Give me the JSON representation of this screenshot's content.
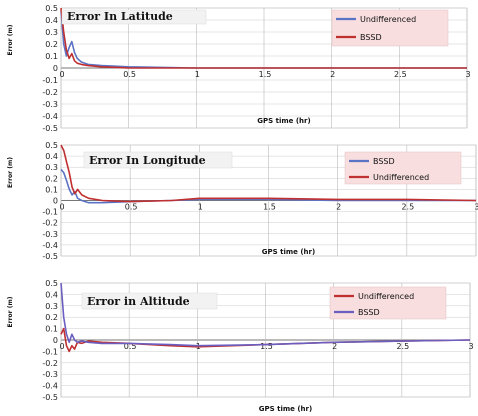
{
  "chart_data": [
    {
      "type": "line",
      "title": "Error In Latitude",
      "xlabel": "GPS time (hr)",
      "ylabel": "Error (m)",
      "xlim": [
        0,
        3
      ],
      "ylim": [
        -0.5,
        0.5
      ],
      "xticks": [
        "0",
        "0.5",
        "1",
        "1.5",
        "2",
        "2.5",
        "3"
      ],
      "yticks": [
        "0.5",
        "0.4",
        "0.3",
        "0.2",
        "0.1",
        "0",
        "-0.1",
        "-0.2",
        "-0.3",
        "-0.4",
        "-0.5"
      ],
      "grid": true,
      "legend_position": "top-right",
      "series": [
        {
          "name": "Undifferenced",
          "color": "#5b73c4",
          "x": [
            0,
            0.02,
            0.04,
            0.06,
            0.08,
            0.1,
            0.12,
            0.15,
            0.2,
            0.3,
            0.5,
            1.0,
            2.0,
            3.0
          ],
          "y": [
            0.48,
            0.2,
            0.1,
            0.17,
            0.22,
            0.13,
            0.08,
            0.05,
            0.03,
            0.02,
            0.01,
            0.0,
            0.0,
            0.0
          ]
        },
        {
          "name": "BSSD",
          "color": "#c03030",
          "x": [
            0,
            0.02,
            0.04,
            0.06,
            0.08,
            0.1,
            0.12,
            0.15,
            0.2,
            0.3,
            0.5,
            1.0,
            2.0,
            3.0
          ],
          "y": [
            0.5,
            0.3,
            0.15,
            0.08,
            0.12,
            0.06,
            0.04,
            0.03,
            0.02,
            0.01,
            0.0,
            0.0,
            0.0,
            0.0
          ]
        }
      ]
    },
    {
      "type": "line",
      "title": "Error In Longitude",
      "xlabel": "GPS time (hr)",
      "ylabel": "Error (m)",
      "xlim": [
        0,
        3
      ],
      "ylim": [
        -0.5,
        0.5
      ],
      "xticks": [
        "0",
        "0.5",
        "1",
        "1.5",
        "2",
        "2.5",
        "3"
      ],
      "yticks": [
        "0.5",
        "0.4",
        "0.3",
        "0.2",
        "0.1",
        "0",
        "-0.1",
        "-0.2",
        "-0.3",
        "-0.4",
        "-0.5"
      ],
      "grid": true,
      "legend_position": "top-right",
      "series": [
        {
          "name": "BSSD",
          "color": "#5b73c4",
          "x": [
            0,
            0.02,
            0.04,
            0.06,
            0.08,
            0.1,
            0.12,
            0.15,
            0.2,
            0.3,
            0.5,
            0.8,
            1.0,
            1.5,
            2.0,
            2.5,
            3.0
          ],
          "y": [
            0.28,
            0.25,
            0.18,
            0.1,
            0.05,
            0.08,
            0.02,
            0.0,
            -0.02,
            -0.02,
            -0.01,
            0.0,
            0.01,
            0.01,
            0.0,
            0.0,
            0.0
          ],
          "note": ""
        },
        {
          "name": "Undifferenced",
          "color": "#c03030",
          "x": [
            0,
            0.02,
            0.04,
            0.06,
            0.08,
            0.1,
            0.12,
            0.15,
            0.2,
            0.3,
            0.5,
            0.8,
            1.0,
            1.5,
            2.0,
            2.5,
            3.0
          ],
          "y": [
            0.5,
            0.45,
            0.35,
            0.25,
            0.12,
            0.06,
            0.1,
            0.05,
            0.02,
            0.0,
            -0.01,
            0.0,
            0.02,
            0.02,
            0.01,
            0.01,
            0.0
          ]
        }
      ]
    },
    {
      "type": "line",
      "title": "Error in Altitude",
      "xlabel": "GPS time (hr)",
      "ylabel": "Error (m)",
      "xlim": [
        0,
        3
      ],
      "ylim": [
        -0.5,
        0.5
      ],
      "xticks": [
        "0",
        "0.5",
        "1",
        "1.5",
        "2",
        "2.5",
        "3"
      ],
      "yticks": [
        "0.5",
        "0.4",
        "0.3",
        "0.2",
        "0.1",
        "0",
        "-0.1",
        "-0.2",
        "-0.3",
        "-0.4",
        "-0.5"
      ],
      "grid": true,
      "legend_position": "top-right",
      "series": [
        {
          "name": "Undifferenced",
          "color": "#c03030",
          "x": [
            0,
            0.02,
            0.04,
            0.06,
            0.08,
            0.1,
            0.12,
            0.15,
            0.2,
            0.3,
            0.5,
            0.8,
            1.0,
            1.5,
            2.0,
            2.5,
            3.0
          ],
          "y": [
            0.05,
            0.1,
            -0.05,
            -0.1,
            -0.05,
            -0.08,
            -0.02,
            -0.03,
            -0.01,
            -0.02,
            -0.03,
            -0.05,
            -0.06,
            -0.04,
            -0.02,
            -0.01,
            0.0
          ]
        },
        {
          "name": "BSSD",
          "color": "#6a5fc0",
          "x": [
            0,
            0.02,
            0.04,
            0.06,
            0.08,
            0.1,
            0.12,
            0.15,
            0.2,
            0.3,
            0.5,
            0.8,
            1.0,
            1.5,
            2.0,
            2.5,
            3.0
          ],
          "y": [
            0.5,
            0.2,
            0.05,
            -0.02,
            0.05,
            0.0,
            -0.02,
            -0.01,
            -0.02,
            -0.03,
            -0.03,
            -0.04,
            -0.05,
            -0.04,
            -0.02,
            -0.01,
            0.0
          ]
        }
      ]
    }
  ]
}
